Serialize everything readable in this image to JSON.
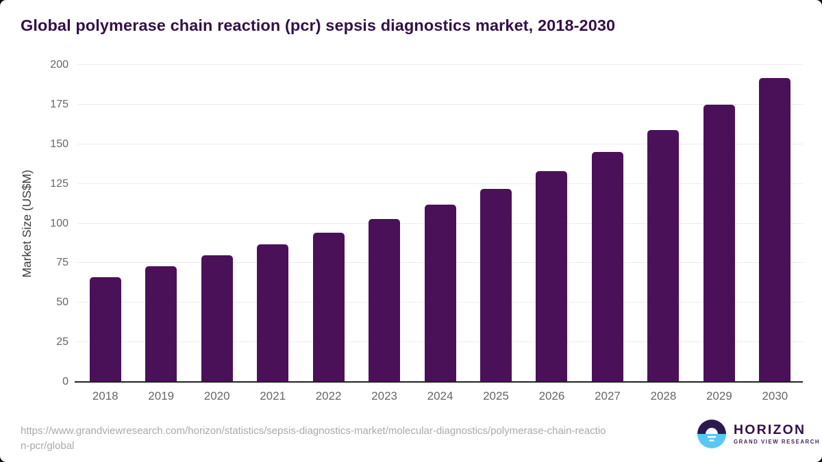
{
  "title": "Global polymerase chain reaction (pcr) sepsis diagnostics market, 2018-2030",
  "chart_data": {
    "type": "bar",
    "categories": [
      "2018",
      "2019",
      "2020",
      "2021",
      "2022",
      "2023",
      "2024",
      "2025",
      "2026",
      "2027",
      "2028",
      "2029",
      "2030"
    ],
    "values": [
      66,
      73,
      80,
      87,
      94,
      103,
      112,
      122,
      133,
      145,
      159,
      175,
      192
    ],
    "title": "Global polymerase chain reaction (pcr) sepsis diagnostics market, 2018-2030",
    "xlabel": "",
    "ylabel": "Market Size (US$M)",
    "ylim": [
      0,
      200
    ],
    "yticks": [
      0,
      25,
      50,
      75,
      100,
      125,
      150,
      175,
      200
    ],
    "grid": true,
    "legend": "none",
    "bar_color": "#4a1158"
  },
  "footer": {
    "url_line1": "https://www.grandviewresearch.com/horizon/statistics/sepsis-diagnostics-market/molecular-diagnostics/polymerase-chain-reactio",
    "url_line2": "n-pcr/global",
    "logo": {
      "name": "HORIZON",
      "tagline": "GRAND VIEW RESEARCH"
    }
  },
  "colors": {
    "title_text": "#331049",
    "bar": "#4a1158",
    "grid": "#ececec",
    "axis": "#212121",
    "tick_text": "#666666",
    "axis_title_text": "#3d3d3d",
    "url_text": "#a9a9a9",
    "logo_dark": "#2c1a4d",
    "logo_blue": "#58c7f3"
  }
}
